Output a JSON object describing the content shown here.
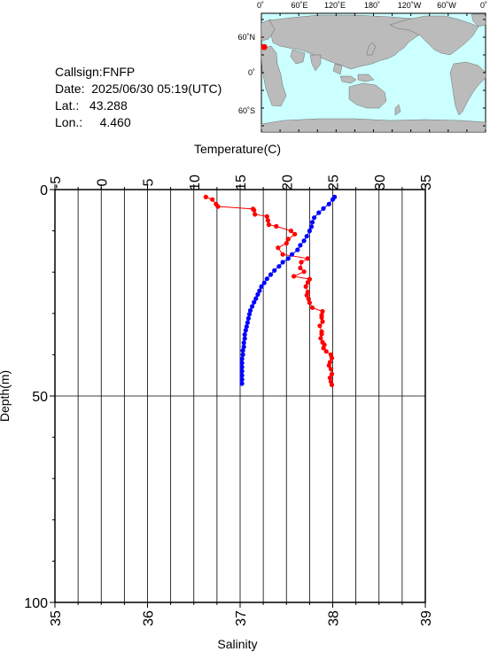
{
  "station": {
    "callsign_text": "Callsign:FNFP",
    "date_text": "Date:  2025/06/30 05:19(UTC)",
    "lat_text": "Lat.:   43.288",
    "lon_text": "Lon.:     4.460",
    "marker_lon_deg": 4.46,
    "marker_lat_deg": 43.288
  },
  "map": {
    "lon_ticks": [
      "0˚",
      "60˚E",
      "120˚E",
      "180˚",
      "120˚W",
      "60˚W",
      "0˚"
    ],
    "lat_ticks": [
      "60˚N",
      "0˚",
      "60˚S"
    ],
    "ocean_color": "#ccffff",
    "land_color": "#bbbbbb",
    "marker_color": "#ff0000"
  },
  "chart_data": {
    "type": "line",
    "top_axis_label": "Temperature(C)",
    "bottom_axis_label": "Salinity",
    "y_label": "Depth(m)",
    "temperature_ticks": [
      "-5",
      "0",
      "5",
      "10",
      "15",
      "20",
      "25",
      "30",
      "35"
    ],
    "salinity_ticks": [
      "35",
      "36",
      "37",
      "38",
      "39"
    ],
    "depth_ticks": [
      "0",
      "50",
      "100"
    ],
    "temperature_range": [
      -5,
      35
    ],
    "salinity_range": [
      35,
      39
    ],
    "depth_range": [
      0,
      100
    ],
    "temperature_color": "#ff0000",
    "salinity_color": "#0000ff",
    "series": [
      {
        "name": "Temperature",
        "axis": "temperature",
        "points": [
          [
            11.3,
            1.8
          ],
          [
            12.0,
            2.4
          ],
          [
            12.4,
            3.5
          ],
          [
            12.6,
            4.1
          ],
          [
            16.4,
            4.7
          ],
          [
            16.5,
            5.0
          ],
          [
            16.6,
            6.0
          ],
          [
            17.9,
            6.5
          ],
          [
            18.0,
            7.5
          ],
          [
            18.1,
            8.5
          ],
          [
            18.9,
            8.9
          ],
          [
            20.5,
            10.0
          ],
          [
            20.9,
            10.8
          ],
          [
            20.2,
            12.0
          ],
          [
            20.0,
            13.0
          ],
          [
            19.1,
            14.1
          ],
          [
            19.6,
            15.7
          ],
          [
            22.3,
            16.7
          ],
          [
            21.6,
            17.6
          ],
          [
            21.5,
            19.0
          ],
          [
            21.9,
            19.9
          ],
          [
            20.8,
            21.0
          ],
          [
            22.5,
            21.7
          ],
          [
            22.3,
            22.5
          ],
          [
            22.1,
            23.5
          ],
          [
            22.3,
            24.8
          ],
          [
            22.2,
            25.6
          ],
          [
            22.4,
            26.5
          ],
          [
            22.5,
            27.4
          ],
          [
            22.8,
            28.6
          ],
          [
            23.9,
            29.5
          ],
          [
            23.8,
            30.4
          ],
          [
            23.8,
            31.0
          ],
          [
            23.9,
            32.0
          ],
          [
            23.6,
            33.0
          ],
          [
            23.8,
            34.4
          ],
          [
            23.8,
            35.0
          ],
          [
            23.7,
            36.0
          ],
          [
            23.9,
            37.0
          ],
          [
            24.1,
            37.6
          ],
          [
            24.0,
            38.4
          ],
          [
            24.3,
            39.2
          ],
          [
            24.8,
            40.0
          ],
          [
            24.9,
            40.8
          ],
          [
            24.7,
            41.8
          ],
          [
            24.6,
            42.6
          ],
          [
            24.8,
            43.5
          ],
          [
            24.9,
            44.7
          ],
          [
            24.7,
            45.6
          ],
          [
            24.8,
            46.5
          ],
          [
            24.9,
            47.3
          ]
        ]
      },
      {
        "name": "Salinity",
        "axis": "salinity",
        "points": [
          [
            38.02,
            1.8
          ],
          [
            38.0,
            2.4
          ],
          [
            37.96,
            3.5
          ],
          [
            37.9,
            4.6
          ],
          [
            37.85,
            5.6
          ],
          [
            37.8,
            6.8
          ],
          [
            37.78,
            7.9
          ],
          [
            37.77,
            9.0
          ],
          [
            37.75,
            10.0
          ],
          [
            37.72,
            11.3
          ],
          [
            37.69,
            12.4
          ],
          [
            37.65,
            13.5
          ],
          [
            37.62,
            14.6
          ],
          [
            37.56,
            15.7
          ],
          [
            37.52,
            16.7
          ],
          [
            37.46,
            17.6
          ],
          [
            37.42,
            18.6
          ],
          [
            37.37,
            19.6
          ],
          [
            37.33,
            20.6
          ],
          [
            37.29,
            21.6
          ],
          [
            37.26,
            22.6
          ],
          [
            37.23,
            23.5
          ],
          [
            37.21,
            24.5
          ],
          [
            37.19,
            25.4
          ],
          [
            37.17,
            26.4
          ],
          [
            37.15,
            27.3
          ],
          [
            37.13,
            28.3
          ],
          [
            37.11,
            29.3
          ],
          [
            37.1,
            30.2
          ],
          [
            37.09,
            31.2
          ],
          [
            37.08,
            32.2
          ],
          [
            37.07,
            33.2
          ],
          [
            37.06,
            34.1
          ],
          [
            37.05,
            35.1
          ],
          [
            37.05,
            36.1
          ],
          [
            37.04,
            37.1
          ],
          [
            37.04,
            38.1
          ],
          [
            37.03,
            39.0
          ],
          [
            37.03,
            40.0
          ],
          [
            37.02,
            41.0
          ],
          [
            37.02,
            42.0
          ],
          [
            37.02,
            43.0
          ],
          [
            37.02,
            44.0
          ],
          [
            37.02,
            45.0
          ],
          [
            37.02,
            46.0
          ],
          [
            37.02,
            47.0
          ]
        ]
      }
    ]
  }
}
